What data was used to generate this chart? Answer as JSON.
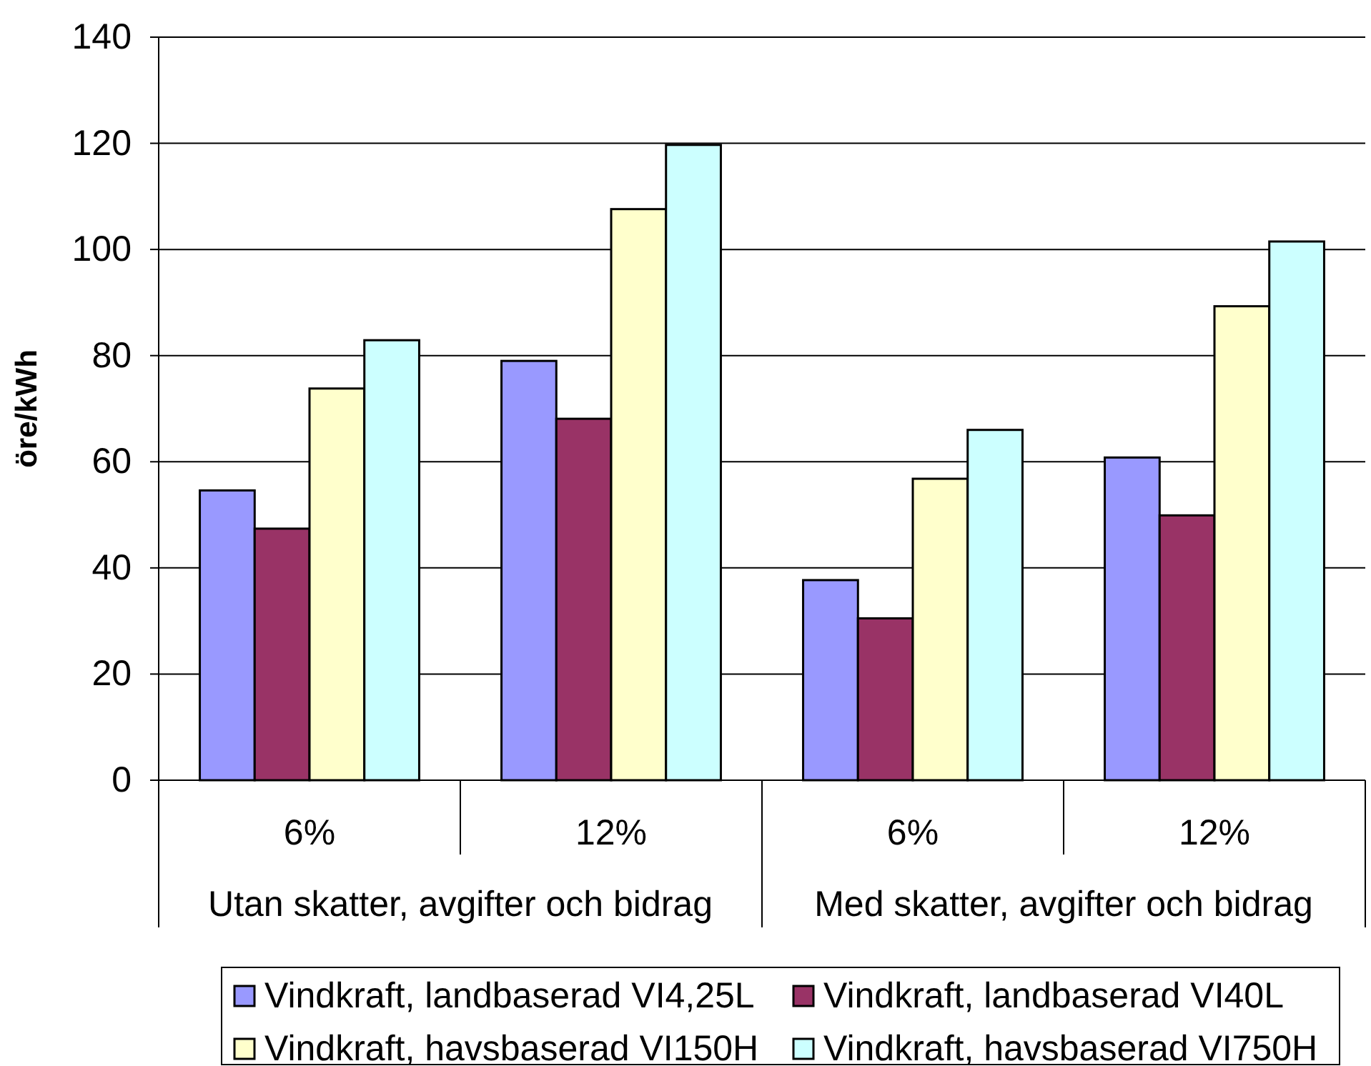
{
  "chart_data": {
    "type": "bar",
    "ylabel": "öre/kWh",
    "categories": [
      "6%",
      "12%",
      "6%",
      "12%"
    ],
    "annotations": [
      "Utan skatter, avgifter och bidrag",
      "Med skatter, avgifter och bidrag"
    ],
    "series": [
      {
        "name": "Vindkraft, landbaserad VI4,25L",
        "color": "#9999ff",
        "values": [
          54.6,
          79.0,
          37.7,
          60.8
        ]
      },
      {
        "name": "Vindkraft, landbaserad VI40L",
        "color": "#993366",
        "values": [
          47.4,
          68.1,
          30.5,
          49.9
        ]
      },
      {
        "name": "Vindkraft, havsbaserad VI150H",
        "color": "#ffffcc",
        "values": [
          73.8,
          107.6,
          56.8,
          89.3
        ]
      },
      {
        "name": "Vindkraft, havsbaserad VI750H",
        "color": "#ccffff",
        "values": [
          82.9,
          119.7,
          66.0,
          101.5
        ]
      }
    ],
    "ylim": [
      0,
      140
    ],
    "yticks": [
      0,
      20,
      40,
      60,
      80,
      100,
      120,
      140
    ],
    "grid": "y",
    "legend": "bottom"
  }
}
